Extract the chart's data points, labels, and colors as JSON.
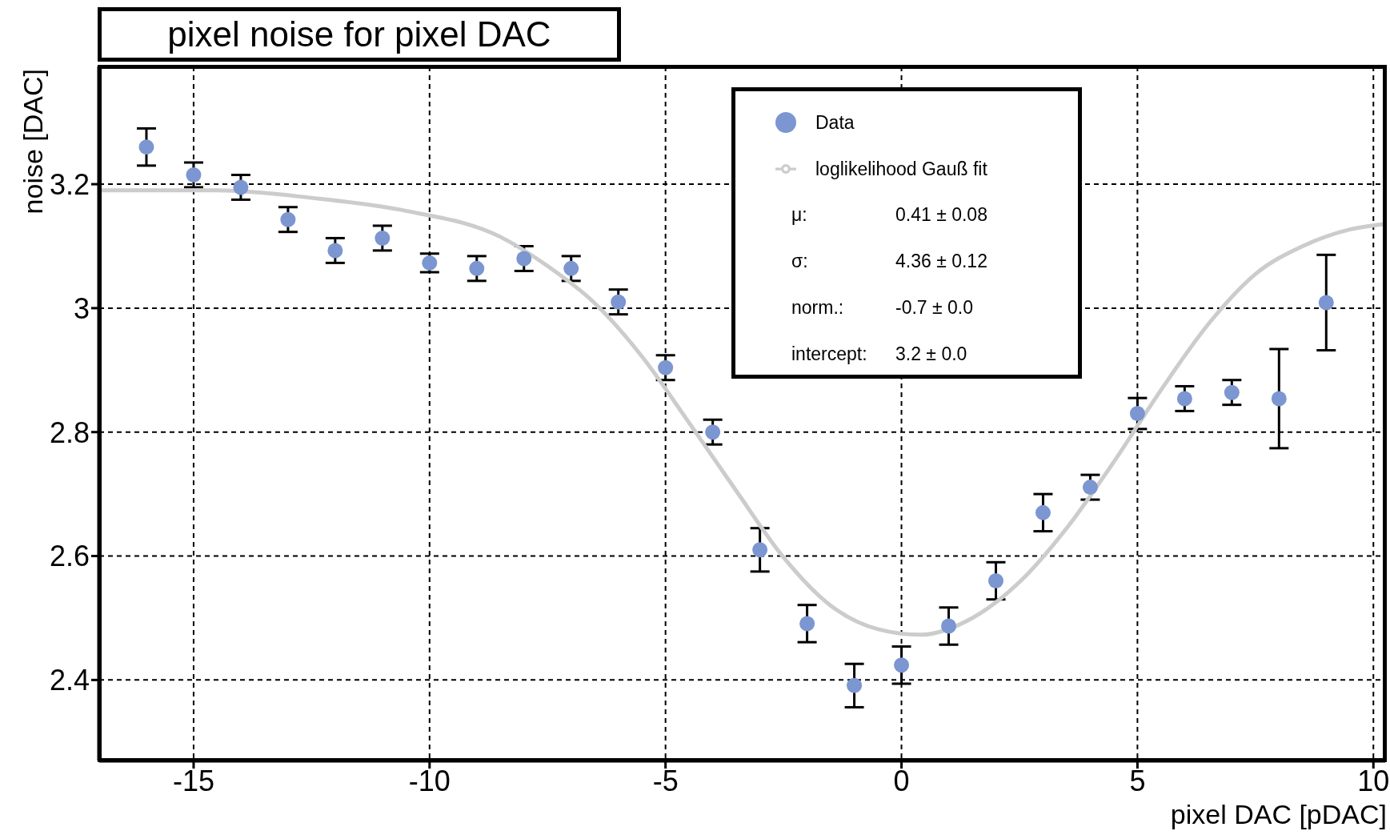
{
  "chart_data": {
    "type": "scatter",
    "title": "pixel noise for pixel DAC",
    "xlabel": "pixel DAC [pDAC]",
    "ylabel": "noise [DAC]",
    "xlim": [
      -17,
      10.25
    ],
    "xticks": [
      -15,
      -10,
      -5,
      0,
      5,
      10
    ],
    "ylim": [
      2.27,
      3.39
    ],
    "yticks": [
      2.4,
      2.6,
      2.8,
      3,
      3.2
    ],
    "grid": true,
    "legend": "top right",
    "marker": "circle",
    "series": [
      {
        "name": "Data",
        "color": "#7b96d0",
        "x": [
          -16,
          -15,
          -14,
          -13,
          -12,
          -11,
          -10,
          -9,
          -8,
          -7,
          -6,
          -5,
          -4,
          -3,
          -2,
          -1,
          0,
          1,
          2,
          3,
          4,
          5,
          6,
          7,
          8,
          9
        ],
        "values": [
          3.26,
          3.215,
          3.195,
          3.143,
          3.093,
          3.113,
          3.073,
          3.064,
          3.08,
          3.064,
          3.01,
          2.904,
          2.8,
          2.61,
          2.491,
          2.391,
          2.424,
          2.487,
          2.56,
          2.67,
          2.711,
          2.83,
          2.854,
          2.864,
          2.854,
          3.009
        ],
        "errors": [
          0.03,
          0.02,
          0.02,
          0.02,
          0.02,
          0.02,
          0.015,
          0.02,
          0.02,
          0.02,
          0.02,
          0.02,
          0.02,
          0.035,
          0.03,
          0.035,
          0.03,
          0.03,
          0.03,
          0.03,
          0.02,
          0.025,
          0.02,
          0.02,
          0.08,
          0.077
        ]
      },
      {
        "name": "loglikelihood Gauß fit",
        "type": "line",
        "marker": "none",
        "color": "#cccccc",
        "x": [
          -17,
          -14.5,
          -12.5,
          -10.5,
          -8.5,
          -7.5,
          -6.5,
          -5.5,
          -4.5,
          -3.5,
          -2.5,
          -1.5,
          -0.5,
          0.4,
          1.5,
          2.5,
          3.5,
          4.5,
          5.5,
          6.5,
          7.5,
          8.5,
          9.5,
          10.25
        ],
        "values": [
          3.19,
          3.19,
          3.178,
          3.157,
          3.115,
          3.068,
          3.008,
          2.922,
          2.815,
          2.705,
          2.598,
          2.52,
          2.482,
          2.473,
          2.5,
          2.558,
          2.645,
          2.752,
          2.868,
          2.974,
          3.055,
          3.1,
          3.127,
          3.136
        ]
      }
    ],
    "annotations": [
      "μ:",
      "0.41 ± 0.08",
      "σ:",
      "4.36 ± 0.12",
      "norm.:",
      "-0.7 ± 0.0",
      "intercept:",
      "3.2 ± 0.0"
    ]
  }
}
